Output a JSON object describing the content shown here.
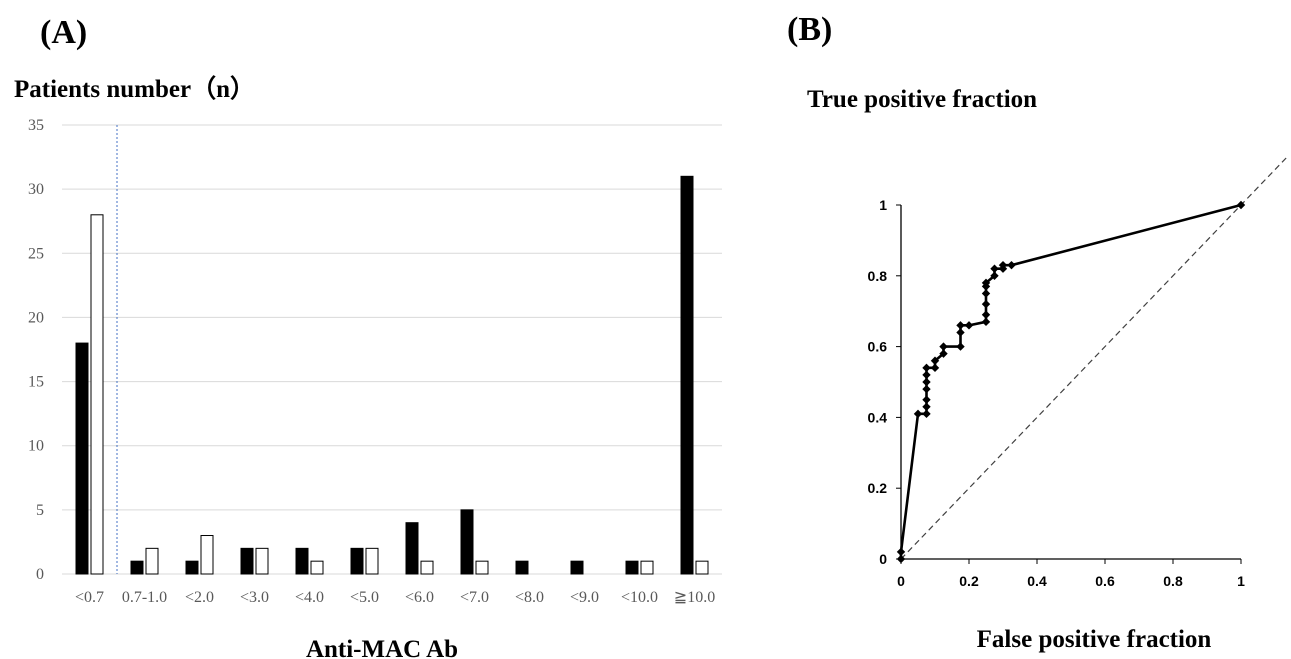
{
  "panels": {
    "a_label": "(A)",
    "b_label": "(B)"
  },
  "chart_data": [
    {
      "type": "bar",
      "title": "",
      "ylabel": "Patients number（n）",
      "xlabel": "Anti-MAC Ab",
      "ylim": [
        0,
        35
      ],
      "yticks": [
        "0",
        "5",
        "10",
        "15",
        "20",
        "25",
        "30",
        "35"
      ],
      "grid": true,
      "categories": [
        "<0.7",
        "0.7-1.0",
        "<2.0",
        "<3.0",
        "<4.0",
        "<5.0",
        "<6.0",
        "<7.0",
        "<8.0",
        "<9.0",
        "<10.0",
        "≧10.0"
      ],
      "series": [
        {
          "values": [
            18,
            1,
            1,
            2,
            2,
            2,
            4,
            5,
            1,
            1,
            1,
            31
          ],
          "color": "#000000"
        },
        {
          "values": [
            28,
            2,
            3,
            2,
            1,
            2,
            1,
            1,
            0,
            0,
            1,
            1
          ],
          "color": "#ffffff"
        }
      ],
      "cutoff_line_after_category": 0,
      "cutoff_color": "#4472c4"
    },
    {
      "type": "line",
      "title": "",
      "ylabel": "True positive fraction",
      "xlabel": "False positive fraction",
      "xlim": [
        0,
        1
      ],
      "ylim": [
        0,
        1
      ],
      "xticks": [
        "0",
        "0.2",
        "0.4",
        "0.6",
        "0.8",
        "1"
      ],
      "yticks": [
        "0",
        "0.2",
        "0.4",
        "0.6",
        "0.8",
        "1"
      ],
      "grid": false,
      "series": [
        {
          "color": "#000000",
          "x": [
            0,
            0,
            0.05,
            0.075,
            0.075,
            0.075,
            0.075,
            0.075,
            0.075,
            0.075,
            0.1,
            0.1,
            0.125,
            0.125,
            0.175,
            0.175,
            0.175,
            0.2,
            0.25,
            0.25,
            0.25,
            0.25,
            0.25,
            0.25,
            0.275,
            0.275,
            0.3,
            0.3,
            0.325,
            1
          ],
          "y": [
            0,
            0.02,
            0.41,
            0.41,
            0.43,
            0.45,
            0.48,
            0.5,
            0.52,
            0.54,
            0.54,
            0.56,
            0.58,
            0.6,
            0.6,
            0.64,
            0.66,
            0.66,
            0.67,
            0.69,
            0.72,
            0.75,
            0.77,
            0.78,
            0.8,
            0.82,
            0.82,
            0.83,
            0.83,
            1
          ]
        }
      ],
      "reference_line": {
        "x": [
          0,
          1.14
        ],
        "y": [
          0,
          1.14
        ],
        "style": "dashed"
      }
    }
  ]
}
